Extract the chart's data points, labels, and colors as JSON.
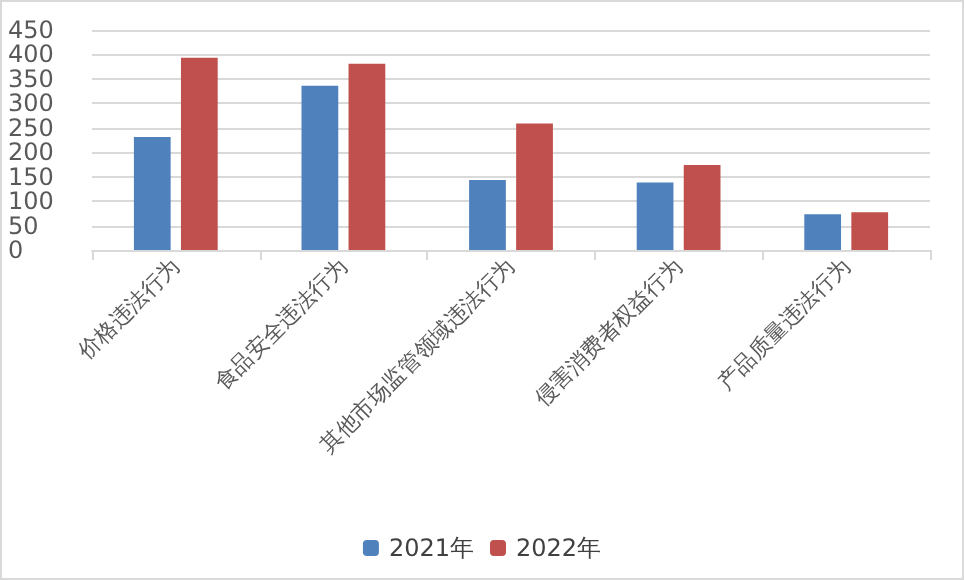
{
  "chart_data": {
    "type": "bar",
    "categories": [
      "价格违法行为",
      "食品安全违法行为",
      "其他市场监管领域违法行为",
      "侵害消费者权益行为",
      "产品质量违法行为"
    ],
    "series": [
      {
        "name": "2021年",
        "color": "#4f81bd",
        "values": [
          231,
          336,
          143,
          138,
          73
        ]
      },
      {
        "name": "2022年",
        "color": "#c0504d",
        "values": [
          393,
          381,
          259,
          174,
          77
        ]
      }
    ],
    "ylim": [
      0,
      450
    ],
    "yticks": [
      0,
      50,
      100,
      150,
      200,
      250,
      300,
      350,
      400,
      450
    ],
    "grid": "y",
    "legend": "bottom"
  }
}
